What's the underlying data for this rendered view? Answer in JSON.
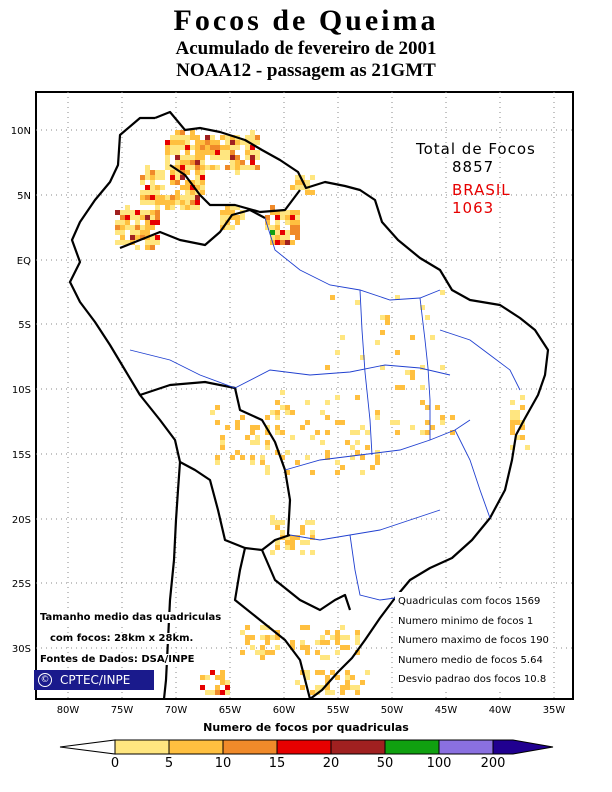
{
  "header": {
    "title": "Focos de Queima",
    "subtitle1": "Acumulado de fevereiro de 2001",
    "subtitle2": "NOAA12 - passagem as 21GMT"
  },
  "totals": {
    "label": "Total de Focos",
    "total": "8857",
    "region": "BRASIL",
    "region_total": "1063",
    "region_color": "#e60000"
  },
  "axes": {
    "lat_labels": [
      "10N",
      "5N",
      "EQ",
      "5S",
      "10S",
      "15S",
      "20S",
      "25S",
      "30S"
    ],
    "lon_labels": [
      "80W",
      "75W",
      "70W",
      "65W",
      "60W",
      "55W",
      "50W",
      "45W",
      "40W",
      "35W"
    ]
  },
  "stats": [
    "Quadriculas com focos 1569",
    "Numero minimo de focos 1",
    "Numero maximo de focos 190",
    "Numero medio de focos 5.64",
    "Desvio padrao dos focos 10.8"
  ],
  "notes": {
    "line1": "Tamanho medio das quadriculas",
    "line2": "com focos: 28km x 28km.",
    "line3": "Fontes de Dados: DSA/INPE"
  },
  "badge": {
    "symbol": "©",
    "text": "CPTEC/INPE"
  },
  "colorbar": {
    "title": "Numero de focos por quadriculas",
    "labels": [
      "0",
      "5",
      "10",
      "15",
      "20",
      "50",
      "100",
      "200"
    ],
    "colors": [
      "#ffe680",
      "#ffc040",
      "#f08a2a",
      "#e60000",
      "#a02020",
      "#10a010",
      "#8a70e0",
      "#200090"
    ]
  }
}
